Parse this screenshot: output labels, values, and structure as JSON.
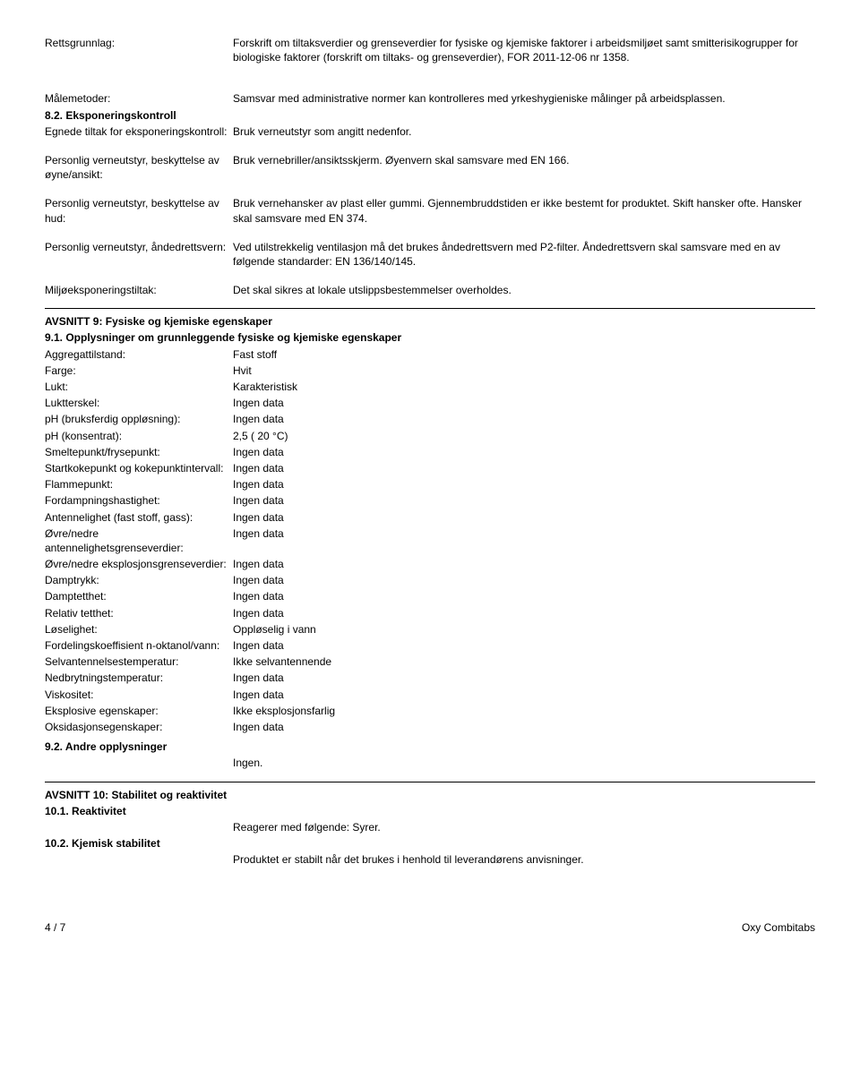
{
  "top": {
    "rettsgrunnlag_label": "Rettsgrunnlag:",
    "rettsgrunnlag_value": "Forskrift om tiltaksverdier og grenseverdier for fysiske og kjemiske faktorer i arbeidsmiljøet samt smitterisikogrupper for biologiske faktorer (forskrift om tiltaks- og grenseverdier), FOR 2011-12-06 nr 1358.",
    "malemetoder_label": "Målemetoder:",
    "malemetoder_value": "Samsvar med administrative normer kan kontrolleres med yrkeshygieniske målinger på arbeidsplassen."
  },
  "s82": {
    "title": "8.2. Eksponeringskontroll",
    "rows": [
      {
        "label": "Egnede tiltak for eksponeringskontroll:",
        "value": "Bruk verneutstyr som angitt nedenfor."
      },
      {
        "label": "Personlig verneutstyr, beskyttelse av øyne/ansikt:",
        "value": "Bruk vernebriller/ansiktsskjerm. Øyenvern skal samsvare med EN 166."
      },
      {
        "label": "Personlig verneutstyr, beskyttelse av hud:",
        "value": "Bruk vernehansker av plast eller gummi. Gjennembruddstiden er ikke bestemt for produktet. Skift hansker ofte. Hansker skal samsvare med EN 374."
      },
      {
        "label": "Personlig verneutstyr, åndedrettsvern:",
        "value": "Ved utilstrekkelig ventilasjon må det brukes åndedrettsvern med P2-filter. Åndedrettsvern skal samsvare med en av følgende standarder: EN 136/140/145."
      },
      {
        "label": "Miljøeksponeringstiltak:",
        "value": "Det skal sikres at lokale utslippsbestemmelser overholdes."
      }
    ]
  },
  "s9": {
    "title": "AVSNITT 9: Fysiske og kjemiske egenskaper",
    "s91_title": "9.1. Opplysninger om grunnleggende fysiske og kjemiske egenskaper",
    "rows": [
      {
        "label": "Aggregattilstand:",
        "value": "Fast stoff"
      },
      {
        "label": "Farge:",
        "value": "Hvit"
      },
      {
        "label": "Lukt:",
        "value": "Karakteristisk"
      },
      {
        "label": "Luktterskel:",
        "value": "Ingen data"
      },
      {
        "label": "pH (bruksferdig oppløsning):",
        "value": "Ingen data"
      },
      {
        "label": "pH (konsentrat):",
        "value": "2,5 ( 20 °C)"
      },
      {
        "label": "Smeltepunkt/frysepunkt:",
        "value": "Ingen data"
      },
      {
        "label": "Startkokepunkt og kokepunktintervall:",
        "value": "Ingen data"
      },
      {
        "label": "Flammepunkt:",
        "value": "Ingen data"
      },
      {
        "label": "Fordampningshastighet:",
        "value": "Ingen data"
      },
      {
        "label": "Antennelighet (fast stoff, gass):",
        "value": "Ingen data"
      },
      {
        "label": "Øvre/nedre antennelighetsgrenseverdier:",
        "value": "Ingen data"
      },
      {
        "label": "Øvre/nedre eksplosjonsgrenseverdier:",
        "value": "Ingen data"
      },
      {
        "label": "Damptrykk:",
        "value": "Ingen data"
      },
      {
        "label": "Damptetthet:",
        "value": "Ingen data"
      },
      {
        "label": "Relativ tetthet:",
        "value": "Ingen data"
      },
      {
        "label": "Løselighet:",
        "value": "Oppløselig i vann"
      },
      {
        "label": "Fordelingskoeffisient n-oktanol/vann:",
        "value": "Ingen data"
      },
      {
        "label": "Selvantennelsestemperatur:",
        "value": "Ikke selvantennende"
      },
      {
        "label": "Nedbrytningstemperatur:",
        "value": "Ingen data"
      },
      {
        "label": "Viskositet:",
        "value": "Ingen data"
      },
      {
        "label": "Eksplosive egenskaper:",
        "value": "Ikke eksplosjonsfarlig"
      },
      {
        "label": "Oksidasjonsegenskaper:",
        "value": "Ingen data"
      }
    ],
    "s92_title": "9.2. Andre opplysninger",
    "s92_value": "Ingen."
  },
  "s10": {
    "title": "AVSNITT 10: Stabilitet og reaktivitet",
    "s101_title": "10.1. Reaktivitet",
    "s101_value": "Reagerer med følgende: Syrer.",
    "s102_title": "10.2. Kjemisk stabilitet",
    "s102_value": "Produktet er stabilt når det brukes i henhold til leverandørens anvisninger."
  },
  "footer": {
    "page": "4 / 7",
    "product": "Oxy Combitabs"
  }
}
